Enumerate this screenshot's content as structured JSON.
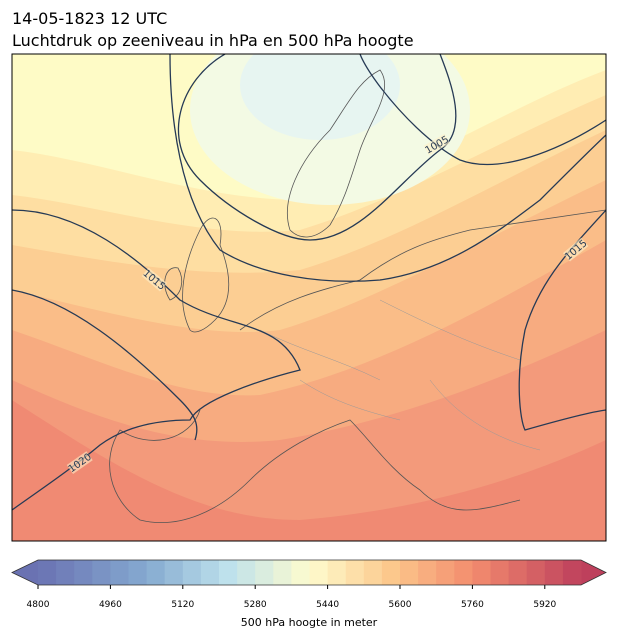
{
  "header": {
    "title": "14-05-1823 12 UTC",
    "subtitle": "Luchtdruk op zeeniveau in hPa en 500 hPa hoogte"
  },
  "map": {
    "contour_labels": [
      "1005",
      "1015",
      "1015",
      "1020"
    ]
  },
  "colorbar": {
    "label": "500 hPa hoogte in meter",
    "range": [
      4800,
      6000
    ],
    "ticks": [
      4800,
      4960,
      5120,
      5280,
      5440,
      5600,
      5760,
      5920
    ]
  }
}
